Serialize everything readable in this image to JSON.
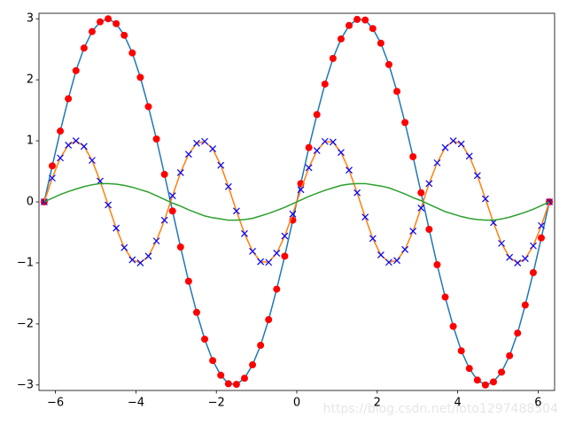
{
  "chart_data": {
    "type": "line",
    "x": [
      -6.28,
      -6.08,
      -5.88,
      -5.68,
      -5.49,
      -5.29,
      -5.09,
      -4.89,
      -4.69,
      -4.49,
      -4.29,
      -4.09,
      -3.89,
      -3.69,
      -3.49,
      -3.29,
      -3.09,
      -2.89,
      -2.69,
      -2.49,
      -2.29,
      -2.09,
      -1.89,
      -1.7,
      -1.5,
      -1.3,
      -1.1,
      -0.9,
      -0.7,
      -0.5,
      -0.3,
      -0.1,
      0.1,
      0.3,
      0.5,
      0.7,
      0.9,
      1.1,
      1.3,
      1.5,
      1.7,
      1.89,
      2.09,
      2.29,
      2.49,
      2.69,
      2.89,
      3.09,
      3.29,
      3.49,
      3.69,
      3.89,
      4.09,
      4.29,
      4.49,
      4.69,
      4.89,
      5.09,
      5.29,
      5.49,
      5.68,
      5.88,
      6.08,
      6.28
    ],
    "series": [
      {
        "color": "#1f77b4",
        "marker": "o",
        "marker_color": "#ff0000",
        "values": [
          0,
          0.59,
          1.16,
          1.69,
          2.15,
          2.52,
          2.79,
          2.95,
          3.0,
          2.92,
          2.73,
          2.44,
          2.04,
          1.56,
          1.03,
          0.45,
          -0.15,
          -0.74,
          -1.3,
          -1.81,
          -2.25,
          -2.6,
          -2.84,
          -2.98,
          -2.99,
          -2.89,
          -2.67,
          -2.35,
          -1.93,
          -1.43,
          -0.89,
          -0.3,
          0.3,
          0.89,
          1.43,
          1.93,
          2.35,
          2.67,
          2.89,
          2.99,
          2.98,
          2.84,
          2.6,
          2.25,
          1.81,
          1.3,
          0.74,
          0.15,
          -0.45,
          -1.03,
          -1.56,
          -2.04,
          -2.44,
          -2.73,
          -2.92,
          -3.0,
          -2.95,
          -2.79,
          -2.52,
          -2.15,
          -1.69,
          -1.16,
          -0.59,
          0
        ]
      },
      {
        "color": "#ff7f0e",
        "marker": "x",
        "marker_color": "#0000ff",
        "values": [
          0,
          0.39,
          0.72,
          0.93,
          1.0,
          0.91,
          0.68,
          0.34,
          -0.05,
          -0.43,
          -0.75,
          -0.95,
          -1.0,
          -0.89,
          -0.64,
          -0.3,
          0.1,
          0.48,
          0.78,
          0.96,
          0.99,
          0.87,
          0.6,
          0.25,
          -0.15,
          -0.52,
          -0.81,
          -0.98,
          -0.99,
          -0.84,
          -0.56,
          -0.2,
          0.2,
          0.56,
          0.84,
          0.99,
          0.98,
          0.81,
          0.52,
          0.15,
          -0.25,
          -0.6,
          -0.87,
          -0.99,
          -0.96,
          -0.78,
          -0.48,
          -0.1,
          0.3,
          0.64,
          0.89,
          1.0,
          0.95,
          0.75,
          0.43,
          0.05,
          -0.34,
          -0.68,
          -0.91,
          -1.0,
          -0.93,
          -0.72,
          -0.39,
          0
        ]
      },
      {
        "color": "#2ca02c",
        "marker": null,
        "marker_color": null,
        "values": [
          0,
          0.06,
          0.12,
          0.17,
          0.21,
          0.25,
          0.28,
          0.3,
          0.3,
          0.29,
          0.27,
          0.24,
          0.2,
          0.16,
          0.1,
          0.04,
          -0.02,
          -0.07,
          -0.13,
          -0.18,
          -0.23,
          -0.26,
          -0.28,
          -0.3,
          -0.3,
          -0.29,
          -0.27,
          -0.23,
          -0.19,
          -0.14,
          -0.09,
          -0.03,
          0.03,
          0.09,
          0.14,
          0.19,
          0.23,
          0.27,
          0.29,
          0.3,
          0.3,
          0.28,
          0.26,
          0.23,
          0.18,
          0.13,
          0.07,
          0.02,
          -0.04,
          -0.1,
          -0.16,
          -0.2,
          -0.24,
          -0.27,
          -0.29,
          -0.3,
          -0.3,
          -0.28,
          -0.25,
          -0.21,
          -0.17,
          -0.12,
          -0.06,
          0
        ]
      }
    ],
    "xlim": [
      -6.41,
      6.41
    ],
    "ylim": [
      -3.09,
      3.09
    ],
    "xticks": [
      {
        "value": -6,
        "label": "−6"
      },
      {
        "value": -4,
        "label": "−4"
      },
      {
        "value": -2,
        "label": "−2"
      },
      0,
      2,
      4,
      6
    ],
    "yticks": [
      {
        "value": -3,
        "label": "−3"
      },
      {
        "value": -2,
        "label": "−2"
      },
      {
        "value": -1,
        "label": "−1"
      },
      0,
      1,
      2,
      3
    ],
    "grid": false,
    "watermark": "https://blog.csdn.net/loto1297488504"
  }
}
